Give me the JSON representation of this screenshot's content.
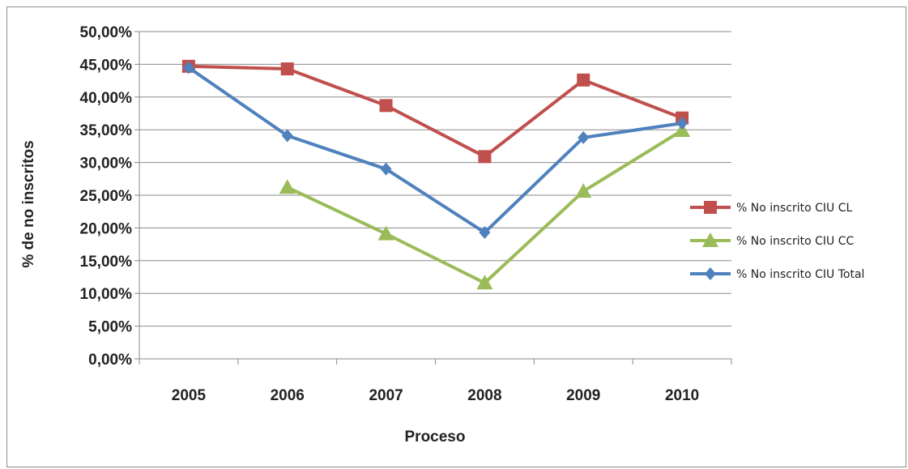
{
  "chart_data": {
    "type": "line",
    "categories": [
      "2005",
      "2006",
      "2007",
      "2008",
      "2009",
      "2010"
    ],
    "xlabel": "Proceso",
    "ylabel": "% de no inscritos",
    "ylim": [
      0,
      0.5
    ],
    "yticks": [
      "0,00%",
      "5,00%",
      "10,00%",
      "15,00%",
      "20,00%",
      "25,00%",
      "30,00%",
      "35,00%",
      "40,00%",
      "45,00%",
      "50,00%"
    ],
    "grid": true,
    "legend_position": "right",
    "series": [
      {
        "name": "% No inscrito CIU CL",
        "color": "#c0504d",
        "marker": "square",
        "values": [
          0.447,
          0.443,
          0.387,
          0.309,
          0.426,
          0.368
        ]
      },
      {
        "name": "% No inscrito CIU CC",
        "color": "#9bbb59",
        "marker": "triangle",
        "values": [
          null,
          0.262,
          0.191,
          0.116,
          0.256,
          0.349
        ]
      },
      {
        "name": "% No inscrito CIU Total",
        "color": "#4f81bd",
        "marker": "diamond",
        "values": [
          0.445,
          0.341,
          0.29,
          0.193,
          0.338,
          0.36
        ]
      }
    ]
  }
}
